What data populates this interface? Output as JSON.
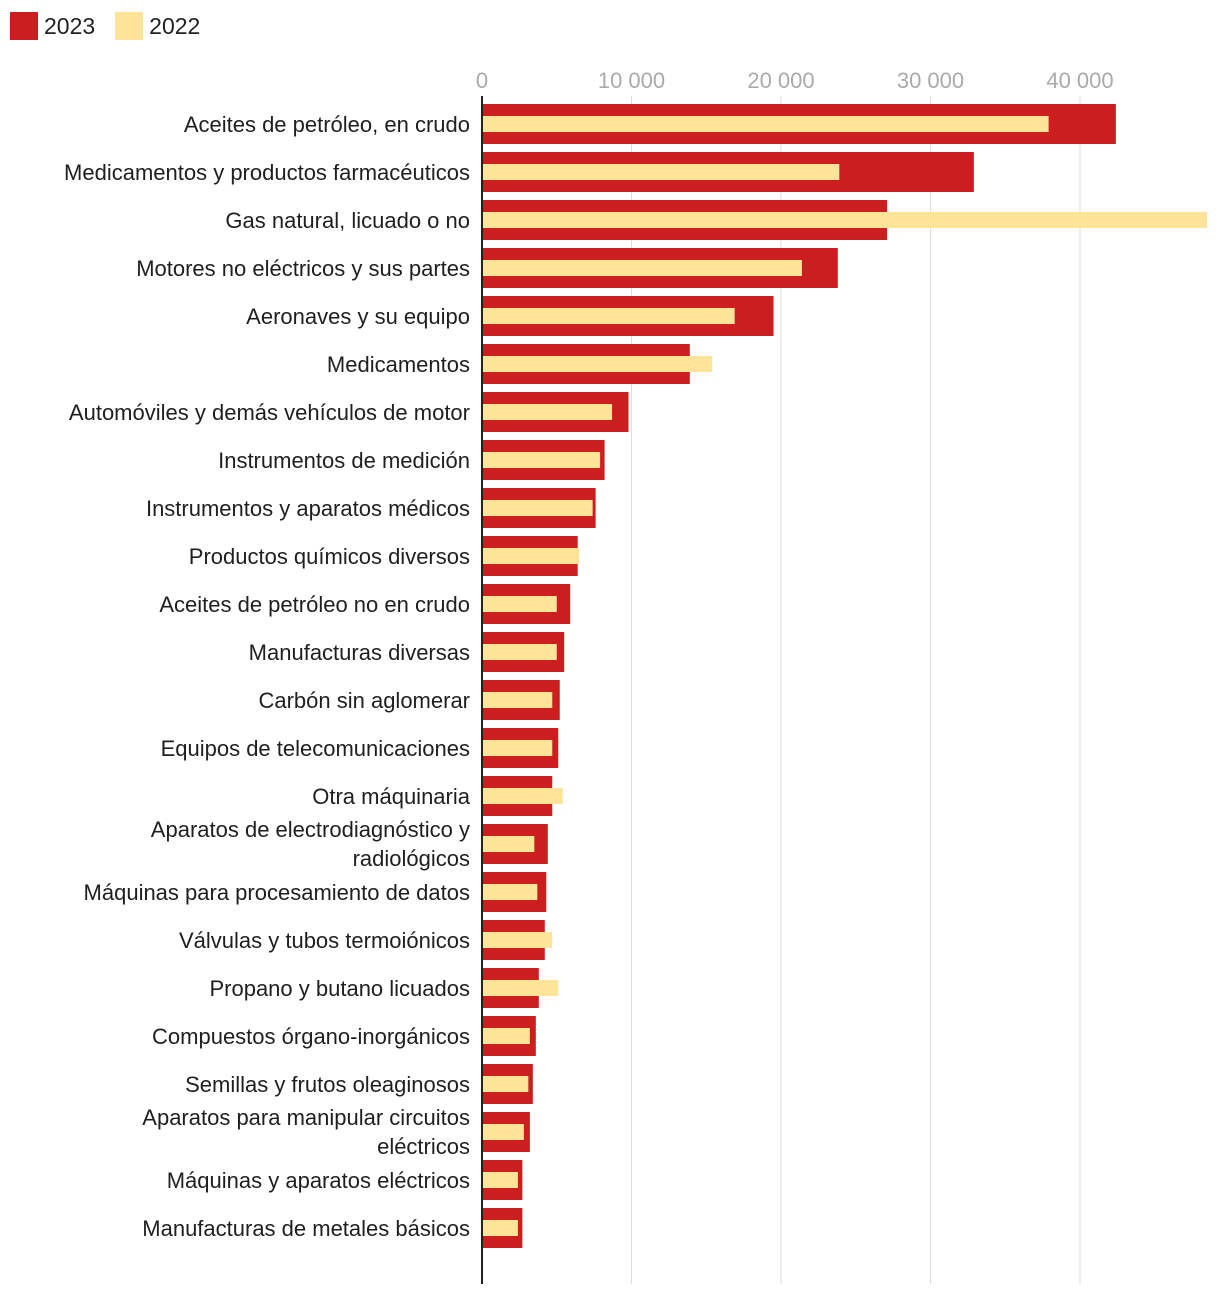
{
  "legend": [
    {
      "name": "2023",
      "color": "#cb1f1f"
    },
    {
      "name": "2022",
      "color": "#fde499"
    }
  ],
  "chart_data": {
    "type": "bar",
    "orientation": "horizontal",
    "title": "",
    "xlabel": "",
    "ylabel": "",
    "xlim": [
      0,
      48500
    ],
    "xticks": [
      0,
      10000,
      20000,
      30000,
      40000
    ],
    "xtick_labels": [
      "0",
      "10 000",
      "20 000",
      "30 000",
      "40 000"
    ],
    "grid": true,
    "legend_position": "top-left",
    "categories": [
      [
        "Aceites de petróleo, en crudo"
      ],
      [
        "Medicamentos y productos farmacéuticos"
      ],
      [
        "Gas natural, licuado o no"
      ],
      [
        "Motores no eléctricos y sus partes"
      ],
      [
        "Aeronaves y su equipo"
      ],
      [
        "Medicamentos"
      ],
      [
        "Automóviles y demás vehículos de motor"
      ],
      [
        "Instrumentos de medición"
      ],
      [
        "Instrumentos y aparatos médicos"
      ],
      [
        "Productos químicos diversos"
      ],
      [
        "Aceites de petróleo no en crudo"
      ],
      [
        "Manufacturas diversas"
      ],
      [
        "Carbón sin aglomerar"
      ],
      [
        "Equipos de telecomunicaciones"
      ],
      [
        "Otra máquinaria"
      ],
      [
        "Aparatos de electrodiagnóstico y",
        "radiológicos"
      ],
      [
        "Máquinas para procesamiento de datos"
      ],
      [
        "Válvulas y tubos termoiónicos"
      ],
      [
        "Propano y butano licuados"
      ],
      [
        "Compuestos órgano-inorgánicos"
      ],
      [
        "Semillas y frutos oleaginosos"
      ],
      [
        "Aparatos para manipular circuitos",
        "eléctricos"
      ],
      [
        "Máquinas y aparatos eléctricos"
      ],
      [
        "Manufacturas de metales básicos"
      ]
    ],
    "series": [
      {
        "name": "2023",
        "color": "#cb1f1f",
        "values": [
          42400,
          32900,
          27100,
          23800,
          19500,
          13900,
          9800,
          8200,
          7600,
          6400,
          5900,
          5500,
          5200,
          5100,
          4700,
          4400,
          4300,
          4200,
          3800,
          3600,
          3400,
          3200,
          2700,
          2700
        ]
      },
      {
        "name": "2022",
        "color": "#fde499",
        "values": [
          37900,
          23900,
          48500,
          21400,
          16900,
          15400,
          8700,
          7900,
          7400,
          6500,
          5000,
          5000,
          4700,
          4700,
          5400,
          3500,
          3700,
          4700,
          5100,
          3200,
          3100,
          2800,
          2400,
          2400
        ]
      }
    ]
  }
}
